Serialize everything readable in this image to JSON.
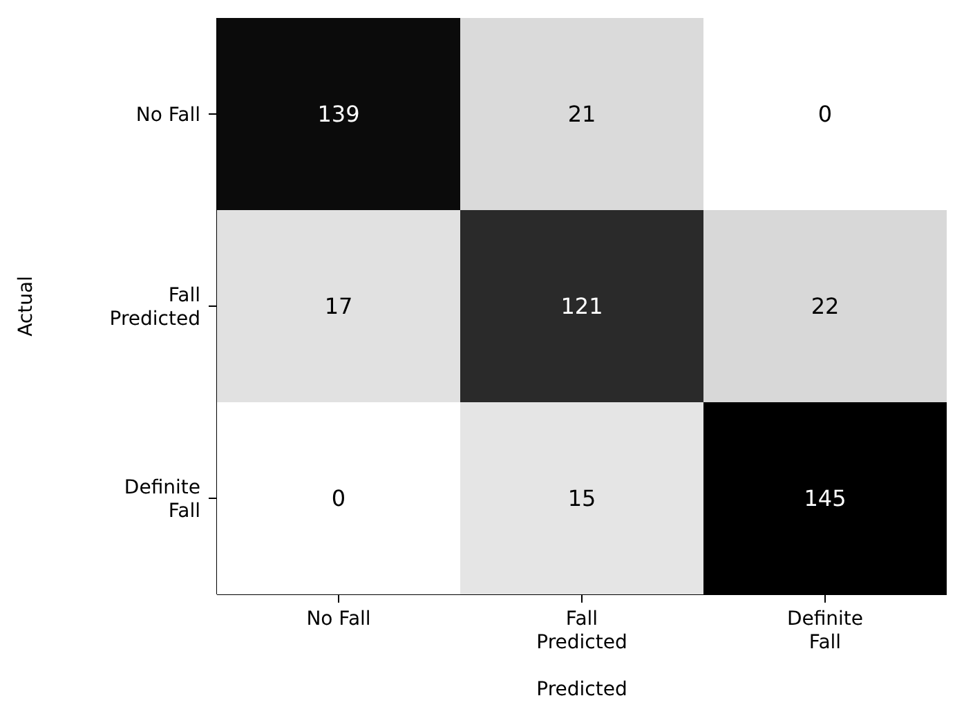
{
  "chart_data": {
    "type": "heatmap",
    "xlabel": "Predicted",
    "ylabel": "Actual",
    "categories": [
      "No Fall",
      "Fall Predicted",
      "Definite Fall"
    ],
    "y_categories": [
      "No Fall",
      "Fall Predicted",
      "Definite Fall"
    ],
    "cells": [
      [
        139,
        21,
        0
      ],
      [
        17,
        121,
        22
      ],
      [
        0,
        15,
        145
      ]
    ],
    "data_labels": true
  }
}
